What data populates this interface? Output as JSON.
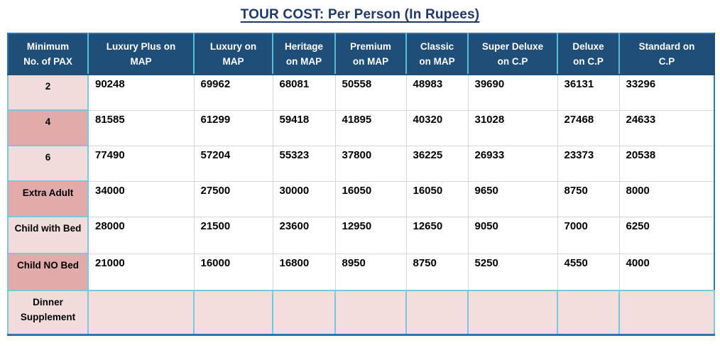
{
  "page_title": "TOUR COST: Per Person (In Rupees)",
  "table": {
    "headers": [
      {
        "line1": "Minimum",
        "line2": "No. of PAX"
      },
      {
        "line1": "Luxury Plus on",
        "line2": "MAP"
      },
      {
        "line1": "Luxury on",
        "line2": "MAP"
      },
      {
        "line1": "Heritage",
        "line2": "on MAP"
      },
      {
        "line1": "Premium",
        "line2": "on MAP"
      },
      {
        "line1": "Classic",
        "line2": "on MAP"
      },
      {
        "line1": "Super Deluxe",
        "line2": "on C.P"
      },
      {
        "line1": "Deluxe",
        "line2": "on C.P"
      },
      {
        "line1": "Standard on",
        "line2": "C.P"
      }
    ],
    "rows": [
      {
        "label": "2",
        "label_shade": "light",
        "row_style": "white",
        "values": [
          "90248",
          "69962",
          "68081",
          "50558",
          "48983",
          "39690",
          "36131",
          "33296"
        ]
      },
      {
        "label": "4",
        "label_shade": "dark",
        "row_style": "white",
        "values": [
          "81585",
          "61299",
          "59418",
          "41895",
          "40320",
          "31028",
          "27468",
          "24633"
        ]
      },
      {
        "label": "6",
        "label_shade": "light",
        "row_style": "white",
        "values": [
          "77490",
          "57204",
          "55323",
          "37800",
          "36225",
          "26933",
          "23373",
          "20538"
        ]
      },
      {
        "label": "Extra Adult",
        "label_shade": "dark",
        "row_style": "white",
        "values": [
          "34000",
          "27500",
          "30000",
          "16050",
          "16050",
          "9650",
          "8750",
          "8000"
        ]
      },
      {
        "label": "Child with Bed",
        "label_shade": "light",
        "row_style": "white",
        "values": [
          "28000",
          "21500",
          "23600",
          "12950",
          "12650",
          "9050",
          "7000",
          "6250"
        ]
      },
      {
        "label": "Child NO Bed",
        "label_shade": "dark",
        "row_style": "white",
        "values": [
          "21000",
          "16000",
          "16800",
          "8950",
          "8750",
          "5250",
          "4550",
          "4000"
        ]
      },
      {
        "label": "Dinner Supplement",
        "label_shade": "light",
        "row_style": "pink",
        "values": [
          "",
          "",
          "",
          "",
          "",
          "",
          "",
          ""
        ]
      }
    ]
  },
  "colors": {
    "title_text": "#1F3864",
    "header_bg": "#1F4E79",
    "header_text": "#FFFFFF",
    "pink_light": "#F2DCDB",
    "pink_dark": "#E0ABAA",
    "border_cyan": "#7CC7DC",
    "border_gray": "#D6D6D6",
    "frame_blue": "#2E74B5"
  }
}
